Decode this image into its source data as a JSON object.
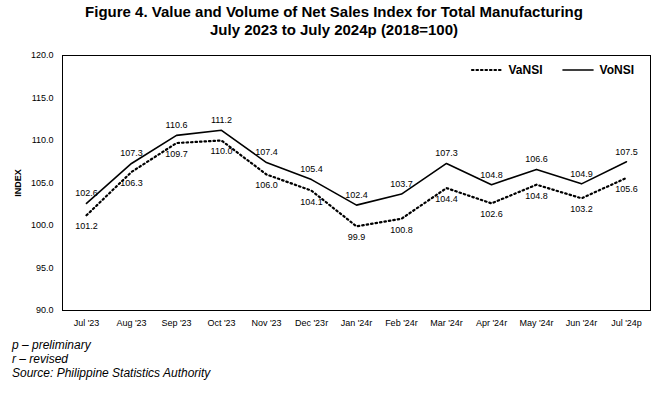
{
  "chart_data": {
    "type": "line",
    "title": "Figure 4. Value and Volume of Net Sales Index for Total Manufacturing",
    "subtitle": "July 2023 to July 2024p (2018=100)",
    "y_label": "INDEX",
    "categories": [
      "Jul '23",
      "Aug '23",
      "Sep '23",
      "Oct '23",
      "Nov '23",
      "Dec '23r",
      "Jan '24r",
      "Feb '24r",
      "Mar '24r",
      "Apr '24r",
      "May '24r",
      "Jun '24r",
      "Jul '24p"
    ],
    "series": [
      {
        "name": "VaNSI",
        "color": "#000000",
        "line_style": "dotted",
        "values": [
          101.2,
          106.3,
          109.7,
          110.0,
          106.0,
          104.1,
          99.9,
          100.8,
          104.4,
          102.6,
          104.8,
          103.2,
          105.6
        ],
        "value_labels": [
          "101.2",
          "106.3",
          "109.7",
          "110.0",
          "106.0",
          "104.1",
          "99.9",
          "100.8",
          "104.4",
          "102.6",
          "104.8",
          "103.2",
          "105.6"
        ]
      },
      {
        "name": "VoNSI",
        "color": "#000000",
        "line_style": "solid",
        "values": [
          102.6,
          107.3,
          110.6,
          111.2,
          107.4,
          105.4,
          102.4,
          103.7,
          107.3,
          104.8,
          106.6,
          104.9,
          107.5
        ],
        "value_labels": [
          "102.6",
          "107.3",
          "110.6",
          "111.2",
          "107.4",
          "105.4",
          "102.4",
          "103.7",
          "107.3",
          "104.8",
          "106.6",
          "104.9",
          "107.5"
        ]
      }
    ],
    "ylim": [
      90,
      120
    ],
    "yticks": [
      {
        "value": 90,
        "label": "90.0"
      },
      {
        "value": 95,
        "label": "95.0"
      },
      {
        "value": 100,
        "label": "100.0"
      },
      {
        "value": 105,
        "label": "105.0"
      },
      {
        "value": 110,
        "label": "110.0"
      },
      {
        "value": 115,
        "label": "115.0"
      },
      {
        "value": 120,
        "label": "120.0"
      }
    ],
    "grid": false,
    "legend": "upper right",
    "data_labels": true,
    "notes": [
      "p – preliminary",
      "r – revised",
      "Source: Philippine Statistics Authority"
    ]
  }
}
